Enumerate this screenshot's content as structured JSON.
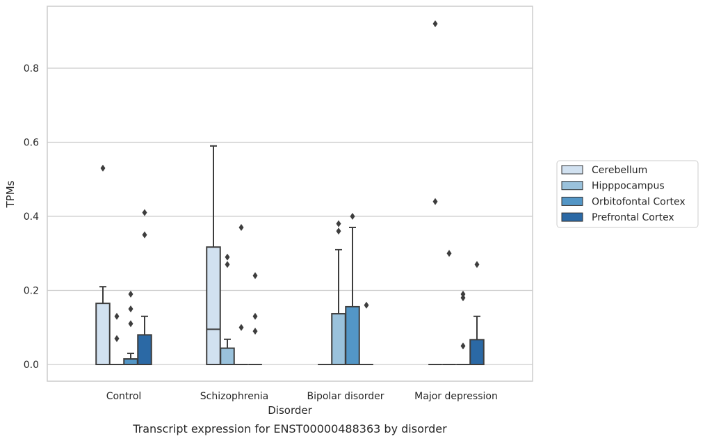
{
  "chart_data": {
    "type": "box",
    "title": "",
    "caption": "Transcript expression for ENST00000488363 by disorder",
    "xlabel": "Disorder",
    "ylabel": "TPMs",
    "ylim": [
      -0.045,
      0.97
    ],
    "yticks": [
      0.0,
      0.2,
      0.4,
      0.6,
      0.8
    ],
    "ytick_labels": [
      "0.0",
      "0.2",
      "0.4",
      "0.6",
      "0.8"
    ],
    "grid": "horizontal",
    "legend_position": "right",
    "categories": [
      "Control",
      "Schizophrenia",
      "Bipolar disorder",
      "Major depression"
    ],
    "series": [
      {
        "name": "Cerebellum",
        "color": "#d1e1f0",
        "boxes": [
          {
            "q1": 0.0,
            "median": 0.0,
            "q3": 0.165,
            "whisker_low": 0.0,
            "whisker_high": 0.21,
            "outliers": [
              0.53
            ]
          },
          {
            "q1": 0.0,
            "median": 0.095,
            "q3": 0.317,
            "whisker_low": 0.0,
            "whisker_high": 0.59,
            "outliers": []
          },
          {
            "q1": 0.0,
            "median": 0.0,
            "q3": 0.0,
            "whisker_low": 0.0,
            "whisker_high": 0.0,
            "outliers": []
          },
          {
            "q1": 0.0,
            "median": 0.0,
            "q3": 0.0,
            "whisker_low": 0.0,
            "whisker_high": 0.0,
            "outliers": [
              0.92,
              0.44
            ]
          }
        ]
      },
      {
        "name": "Hipppocampus",
        "color": "#9ac2dc",
        "boxes": [
          {
            "q1": 0.0,
            "median": 0.0,
            "q3": 0.0,
            "whisker_low": 0.0,
            "whisker_high": 0.0,
            "outliers": [
              0.13,
              0.07
            ]
          },
          {
            "q1": 0.0,
            "median": 0.0,
            "q3": 0.044,
            "whisker_low": 0.0,
            "whisker_high": 0.068,
            "outliers": [
              0.29,
              0.27
            ]
          },
          {
            "q1": 0.0,
            "median": 0.0,
            "q3": 0.137,
            "whisker_low": 0.0,
            "whisker_high": 0.31,
            "outliers": [
              0.38,
              0.36
            ]
          },
          {
            "q1": 0.0,
            "median": 0.0,
            "q3": 0.0,
            "whisker_low": 0.0,
            "whisker_high": 0.0,
            "outliers": [
              0.3
            ]
          }
        ]
      },
      {
        "name": "Orbitofontal Cortex",
        "color": "#5396c6",
        "boxes": [
          {
            "q1": 0.0,
            "median": 0.0,
            "q3": 0.015,
            "whisker_low": 0.0,
            "whisker_high": 0.03,
            "outliers": [
              0.19,
              0.15,
              0.11
            ]
          },
          {
            "q1": 0.0,
            "median": 0.0,
            "q3": 0.0,
            "whisker_low": 0.0,
            "whisker_high": 0.0,
            "outliers": [
              0.37,
              0.1
            ]
          },
          {
            "q1": 0.0,
            "median": 0.0,
            "q3": 0.156,
            "whisker_low": 0.0,
            "whisker_high": 0.37,
            "outliers": [
              0.4
            ]
          },
          {
            "q1": 0.0,
            "median": 0.0,
            "q3": 0.0,
            "whisker_low": 0.0,
            "whisker_high": 0.0,
            "outliers": [
              0.19,
              0.18,
              0.05
            ]
          }
        ]
      },
      {
        "name": "Prefrontal Cortex",
        "color": "#2b69a5",
        "boxes": [
          {
            "q1": 0.0,
            "median": 0.0,
            "q3": 0.08,
            "whisker_low": 0.0,
            "whisker_high": 0.13,
            "outliers": [
              0.41,
              0.35
            ]
          },
          {
            "q1": 0.0,
            "median": 0.0,
            "q3": 0.0,
            "whisker_low": 0.0,
            "whisker_high": 0.0,
            "outliers": [
              0.24,
              0.13,
              0.09
            ]
          },
          {
            "q1": 0.0,
            "median": 0.0,
            "q3": 0.0,
            "whisker_low": 0.0,
            "whisker_high": 0.0,
            "outliers": [
              0.16
            ]
          },
          {
            "q1": 0.0,
            "median": 0.0,
            "q3": 0.067,
            "whisker_low": 0.0,
            "whisker_high": 0.13,
            "outliers": [
              0.27
            ]
          }
        ]
      }
    ]
  }
}
